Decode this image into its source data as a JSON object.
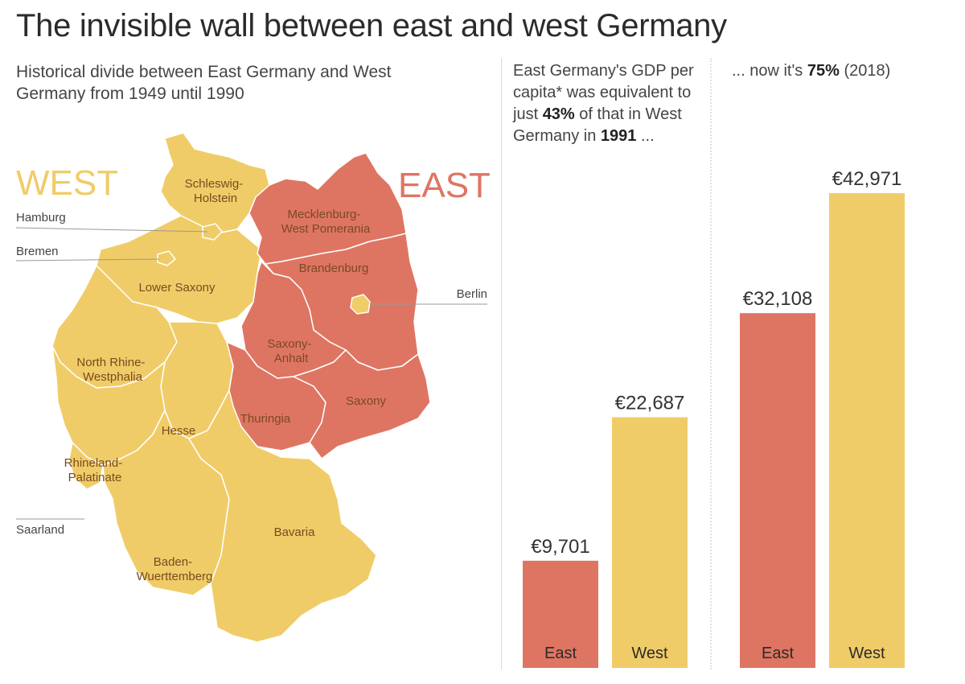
{
  "header": {
    "title": "The invisible wall between east and west Germany",
    "subtitle": "Historical divide between East Germany and West Germany from 1949 until 1990"
  },
  "colors": {
    "west": "#F0CC68",
    "east": "#DE7562",
    "west_text": "#F0CC68",
    "east_text": "#DE7562",
    "region_border": "#ffffff",
    "divider": "#d9d9d9"
  },
  "map": {
    "west_label": "WEST",
    "east_label": "EAST",
    "regions": [
      {
        "id": "schleswig-holstein",
        "lines": [
          "Schleswig-",
          "Holstein"
        ],
        "side": "west"
      },
      {
        "id": "lower-saxony",
        "lines": [
          "Lower Saxony"
        ],
        "side": "west"
      },
      {
        "id": "north-rhine-westphalia",
        "lines": [
          "North Rhine-",
          "Westphalia"
        ],
        "side": "west"
      },
      {
        "id": "hesse",
        "lines": [
          "Hesse"
        ],
        "side": "west"
      },
      {
        "id": "rhineland-palatinate",
        "lines": [
          "Rhineland-",
          "Palatinate"
        ],
        "side": "west"
      },
      {
        "id": "bavaria",
        "lines": [
          "Bavaria"
        ],
        "side": "west"
      },
      {
        "id": "baden-wuerttemberg",
        "lines": [
          "Baden-",
          "Wuerttemberg"
        ],
        "side": "west"
      },
      {
        "id": "mecklenburg-west-pomerania",
        "lines": [
          "Mecklenburg-",
          "West Pomerania"
        ],
        "side": "east"
      },
      {
        "id": "brandenburg",
        "lines": [
          "Brandenburg"
        ],
        "side": "east"
      },
      {
        "id": "saxony-anhalt",
        "lines": [
          "Saxony-",
          "Anhalt"
        ],
        "side": "east"
      },
      {
        "id": "thuringia",
        "lines": [
          "Thuringia"
        ],
        "side": "east"
      },
      {
        "id": "saxony",
        "lines": [
          "Saxony"
        ],
        "side": "east"
      }
    ],
    "callouts": [
      {
        "id": "hamburg",
        "label": "Hamburg"
      },
      {
        "id": "bremen",
        "label": "Bremen"
      },
      {
        "id": "saarland",
        "label": "Saarland"
      },
      {
        "id": "berlin",
        "label": "Berlin"
      }
    ]
  },
  "notes": {
    "left": {
      "before": "East Germany's GDP per capita* was equivalent to just ",
      "percent": "43%",
      "middle": " of that in West Germany in ",
      "year": "1991",
      "after": " ..."
    },
    "right": {
      "before": "... now it's ",
      "percent": "75%",
      "after": " (2018)"
    }
  },
  "chart_data": [
    {
      "type": "bar",
      "title": "",
      "categories": [
        "East",
        "West"
      ],
      "values": [
        9701,
        22687
      ],
      "value_labels": [
        "€9,701",
        "€22,687"
      ],
      "colors": [
        "#DE7562",
        "#F0CC68"
      ],
      "ylim": [
        0,
        42971
      ],
      "grid": false
    },
    {
      "type": "bar",
      "title": "",
      "categories": [
        "East",
        "West"
      ],
      "values": [
        32108,
        42971
      ],
      "value_labels": [
        "€32,108",
        "€42,971"
      ],
      "colors": [
        "#DE7562",
        "#F0CC68"
      ],
      "ylim": [
        0,
        42971
      ],
      "grid": false
    }
  ]
}
